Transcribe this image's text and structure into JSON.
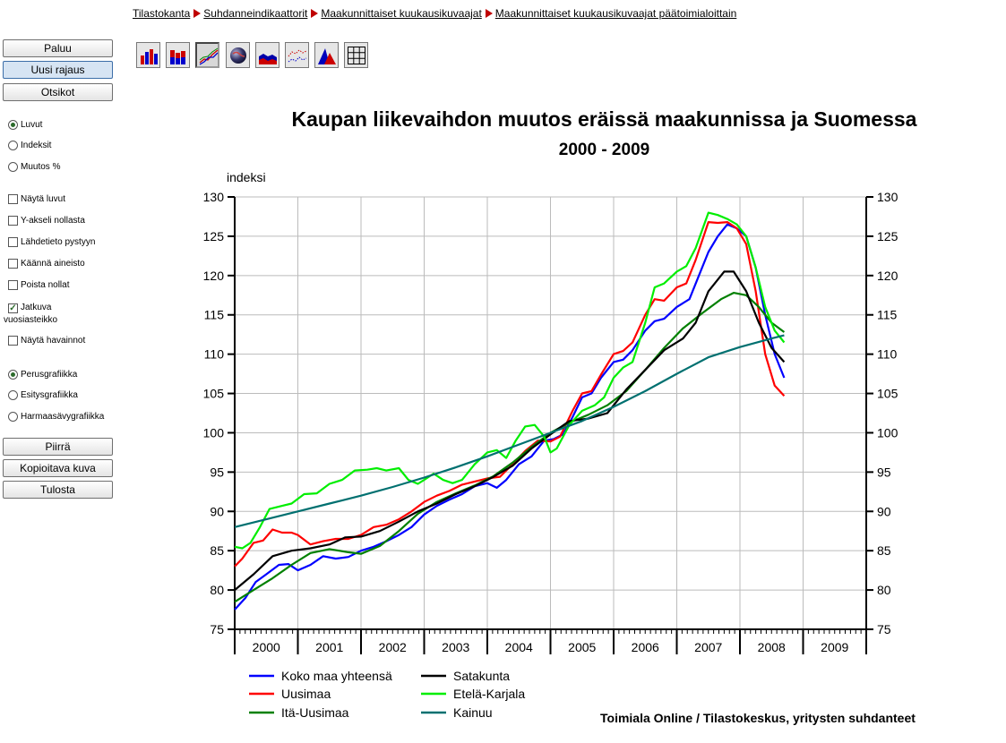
{
  "breadcrumb": [
    "Tilastokanta",
    "Suhdanneindikaattorit",
    "Maakunnittaiset kuukausikuvaajat",
    "Maakunnittaiset kuukausikuvaajat päätoimialoittain"
  ],
  "sidebar": {
    "buttons_top": [
      "Paluu",
      "Uusi rajaus",
      "Otsikot"
    ],
    "value_type": [
      {
        "label": "Luvut",
        "selected": true
      },
      {
        "label": "Indeksit",
        "selected": false
      },
      {
        "label": "Muutos %",
        "selected": false
      }
    ],
    "options": [
      {
        "label": "Näytä luvut",
        "checked": false
      },
      {
        "label": "Y-akseli nollasta",
        "checked": false
      },
      {
        "label": "Lähdetieto pystyyn",
        "checked": false
      },
      {
        "label": "Käännä aineisto",
        "checked": false
      },
      {
        "label": "Poista nollat",
        "checked": false
      },
      {
        "label": "Jatkuva vuosiasteikko",
        "checked": true
      },
      {
        "label": "Näytä havainnot",
        "checked": false
      }
    ],
    "graphics_type": [
      {
        "label": "Perusgrafiikka",
        "selected": true
      },
      {
        "label": "Esitysgrafiikka",
        "selected": false
      },
      {
        "label": "Harmaasävygrafiikka",
        "selected": false
      }
    ],
    "buttons_bottom": [
      "Piirrä",
      "Kopioitava kuva",
      "Tulosta"
    ]
  },
  "toolbar": {
    "icons": [
      "bar-chart-icon",
      "stacked-bar-icon",
      "line-chart-icon",
      "globe-map-icon",
      "area-chart-icon",
      "scatter-line-icon",
      "pie-area-icon",
      "table-grid-icon"
    ],
    "active": 2
  },
  "colors": {
    "accent": "#c00000",
    "grid": "#bbbbbb"
  },
  "source_note": "Toimiala Online / Tilastokeskus, yritysten suhdanteet",
  "chart_data": {
    "type": "line",
    "title": "Kaupan liikevaihdon muutos eräissä maakunnissa ja Suomessa",
    "subtitle": "2000 - 2009",
    "ylabel": "indeksi",
    "ylim": [
      75,
      130
    ],
    "yticks": [
      75,
      80,
      85,
      90,
      95,
      100,
      105,
      110,
      115,
      120,
      125,
      130
    ],
    "xlim": [
      2000,
      2010
    ],
    "xtick_labels": [
      "2000",
      "2001",
      "2002",
      "2003",
      "2004",
      "2005",
      "2006",
      "2007",
      "2008",
      "2009"
    ],
    "grid": true,
    "legend_position": "bottom",
    "series": [
      {
        "name": "Koko maa yhteensä",
        "color": "#0000ff",
        "points": [
          [
            2000.0,
            77.5
          ],
          [
            2000.17,
            79
          ],
          [
            2000.33,
            81
          ],
          [
            2000.5,
            82
          ],
          [
            2000.7,
            83.2
          ],
          [
            2000.85,
            83.3
          ],
          [
            2001.0,
            82.5
          ],
          [
            2001.2,
            83.2
          ],
          [
            2001.4,
            84.3
          ],
          [
            2001.6,
            84
          ],
          [
            2001.8,
            84.2
          ],
          [
            2002.0,
            85
          ],
          [
            2002.2,
            85.5
          ],
          [
            2002.4,
            86.2
          ],
          [
            2002.6,
            87
          ],
          [
            2002.8,
            88
          ],
          [
            2003.0,
            89.6
          ],
          [
            2003.2,
            90.7
          ],
          [
            2003.4,
            91.5
          ],
          [
            2003.6,
            92.2
          ],
          [
            2003.8,
            93.2
          ],
          [
            2004.0,
            93.6
          ],
          [
            2004.15,
            93
          ],
          [
            2004.3,
            94
          ],
          [
            2004.5,
            96
          ],
          [
            2004.7,
            97
          ],
          [
            2004.9,
            99
          ],
          [
            2005.05,
            99.2
          ],
          [
            2005.2,
            99.8
          ],
          [
            2005.35,
            102
          ],
          [
            2005.5,
            104.5
          ],
          [
            2005.65,
            105
          ],
          [
            2005.8,
            107
          ],
          [
            2006.0,
            109
          ],
          [
            2006.15,
            109.3
          ],
          [
            2006.3,
            110.5
          ],
          [
            2006.5,
            113
          ],
          [
            2006.65,
            114.2
          ],
          [
            2006.8,
            114.5
          ],
          [
            2007.0,
            116
          ],
          [
            2007.2,
            117
          ],
          [
            2007.35,
            120
          ],
          [
            2007.5,
            123
          ],
          [
            2007.65,
            125
          ],
          [
            2007.8,
            126.5
          ],
          [
            2007.95,
            126
          ],
          [
            2008.1,
            125
          ],
          [
            2008.25,
            121
          ],
          [
            2008.4,
            115
          ],
          [
            2008.55,
            110
          ],
          [
            2008.7,
            107
          ]
        ]
      },
      {
        "name": "Uusimaa",
        "color": "#ff0000",
        "points": [
          [
            2000.0,
            83
          ],
          [
            2000.12,
            84
          ],
          [
            2000.3,
            86
          ],
          [
            2000.45,
            86.3
          ],
          [
            2000.6,
            87.7
          ],
          [
            2000.75,
            87.3
          ],
          [
            2000.9,
            87.3
          ],
          [
            2001.0,
            87
          ],
          [
            2001.2,
            85.8
          ],
          [
            2001.4,
            86.2
          ],
          [
            2001.6,
            86.5
          ],
          [
            2001.8,
            86.5
          ],
          [
            2002.0,
            87
          ],
          [
            2002.2,
            88
          ],
          [
            2002.4,
            88.3
          ],
          [
            2002.6,
            89
          ],
          [
            2002.8,
            90
          ],
          [
            2003.0,
            91.2
          ],
          [
            2003.2,
            92
          ],
          [
            2003.4,
            92.6
          ],
          [
            2003.6,
            93.4
          ],
          [
            2003.8,
            93.8
          ],
          [
            2004.0,
            94.2
          ],
          [
            2004.2,
            94.4
          ],
          [
            2004.4,
            96
          ],
          [
            2004.6,
            97.7
          ],
          [
            2004.8,
            99
          ],
          [
            2005.0,
            98.9
          ],
          [
            2005.15,
            99.5
          ],
          [
            2005.35,
            102.8
          ],
          [
            2005.5,
            105
          ],
          [
            2005.65,
            105.3
          ],
          [
            2005.8,
            107.4
          ],
          [
            2006.0,
            110
          ],
          [
            2006.15,
            110.4
          ],
          [
            2006.3,
            111.5
          ],
          [
            2006.5,
            115
          ],
          [
            2006.65,
            117
          ],
          [
            2006.8,
            116.8
          ],
          [
            2007.0,
            118.5
          ],
          [
            2007.15,
            119
          ],
          [
            2007.3,
            122
          ],
          [
            2007.5,
            126.8
          ],
          [
            2007.65,
            126.7
          ],
          [
            2007.8,
            126.8
          ],
          [
            2007.95,
            126
          ],
          [
            2008.1,
            124
          ],
          [
            2008.25,
            118
          ],
          [
            2008.4,
            110
          ],
          [
            2008.55,
            106
          ],
          [
            2008.7,
            104.7
          ]
        ]
      },
      {
        "name": "Itä-Uusimaa",
        "color": "#008000",
        "points": [
          [
            2000.0,
            78.5
          ],
          [
            2000.3,
            80
          ],
          [
            2000.6,
            81.5
          ],
          [
            2000.9,
            83.2
          ],
          [
            2001.2,
            84.7
          ],
          [
            2001.5,
            85.2
          ],
          [
            2001.8,
            84.8
          ],
          [
            2002.0,
            84.6
          ],
          [
            2002.3,
            85.6
          ],
          [
            2002.6,
            87.5
          ],
          [
            2002.9,
            89.7
          ],
          [
            2003.2,
            91.2
          ],
          [
            2003.5,
            92.3
          ],
          [
            2003.8,
            93.3
          ],
          [
            2004.1,
            94.5
          ],
          [
            2004.4,
            96.2
          ],
          [
            2004.7,
            98.2
          ],
          [
            2005.0,
            100
          ],
          [
            2005.3,
            101.3
          ],
          [
            2005.6,
            102.3
          ],
          [
            2005.9,
            103.5
          ],
          [
            2006.2,
            105.3
          ],
          [
            2006.5,
            108
          ],
          [
            2006.8,
            110.8
          ],
          [
            2007.1,
            113.3
          ],
          [
            2007.4,
            115.2
          ],
          [
            2007.7,
            117
          ],
          [
            2007.9,
            117.8
          ],
          [
            2008.1,
            117.5
          ],
          [
            2008.3,
            116
          ],
          [
            2008.5,
            114
          ],
          [
            2008.7,
            112.8
          ]
        ]
      },
      {
        "name": "Satakunta",
        "color": "#000000",
        "points": [
          [
            2000.0,
            80
          ],
          [
            2000.3,
            82
          ],
          [
            2000.6,
            84.3
          ],
          [
            2000.9,
            85
          ],
          [
            2001.2,
            85.3
          ],
          [
            2001.5,
            85.8
          ],
          [
            2001.75,
            86.7
          ],
          [
            2002.0,
            86.8
          ],
          [
            2002.3,
            87.5
          ],
          [
            2002.6,
            88.7
          ],
          [
            2002.9,
            90
          ],
          [
            2003.2,
            91
          ],
          [
            2003.5,
            92.2
          ],
          [
            2003.8,
            93.2
          ],
          [
            2004.1,
            94.4
          ],
          [
            2004.4,
            95.8
          ],
          [
            2004.7,
            98
          ],
          [
            2005.0,
            99.8
          ],
          [
            2005.3,
            101.5
          ],
          [
            2005.6,
            101.8
          ],
          [
            2005.9,
            102.5
          ],
          [
            2006.2,
            105.5
          ],
          [
            2006.5,
            108
          ],
          [
            2006.8,
            110.5
          ],
          [
            2007.1,
            112
          ],
          [
            2007.3,
            114
          ],
          [
            2007.5,
            118
          ],
          [
            2007.75,
            120.5
          ],
          [
            2007.9,
            120.5
          ],
          [
            2008.1,
            118
          ],
          [
            2008.3,
            114
          ],
          [
            2008.5,
            110.8
          ],
          [
            2008.7,
            109
          ]
        ]
      },
      {
        "name": "Etelä-Karjala",
        "color": "#00ee00",
        "points": [
          [
            2000.0,
            85.5
          ],
          [
            2000.12,
            85.3
          ],
          [
            2000.25,
            86
          ],
          [
            2000.4,
            88
          ],
          [
            2000.55,
            90.3
          ],
          [
            2000.75,
            90.7
          ],
          [
            2000.9,
            91
          ],
          [
            2001.1,
            92.2
          ],
          [
            2001.3,
            92.3
          ],
          [
            2001.5,
            93.5
          ],
          [
            2001.7,
            94
          ],
          [
            2001.9,
            95.2
          ],
          [
            2002.1,
            95.3
          ],
          [
            2002.25,
            95.5
          ],
          [
            2002.4,
            95.2
          ],
          [
            2002.6,
            95.5
          ],
          [
            2002.75,
            94
          ],
          [
            2002.9,
            93.5
          ],
          [
            2003.0,
            94
          ],
          [
            2003.15,
            94.8
          ],
          [
            2003.3,
            94
          ],
          [
            2003.45,
            93.6
          ],
          [
            2003.6,
            94
          ],
          [
            2003.8,
            96
          ],
          [
            2004.0,
            97.5
          ],
          [
            2004.15,
            97.8
          ],
          [
            2004.3,
            96.8
          ],
          [
            2004.45,
            99
          ],
          [
            2004.6,
            100.8
          ],
          [
            2004.75,
            101
          ],
          [
            2004.9,
            99.5
          ],
          [
            2005.0,
            97.5
          ],
          [
            2005.1,
            98
          ],
          [
            2005.3,
            101
          ],
          [
            2005.5,
            102.8
          ],
          [
            2005.7,
            103.5
          ],
          [
            2005.85,
            104.5
          ],
          [
            2006.0,
            107
          ],
          [
            2006.15,
            108.3
          ],
          [
            2006.3,
            109
          ],
          [
            2006.5,
            114
          ],
          [
            2006.65,
            118.5
          ],
          [
            2006.8,
            119
          ],
          [
            2007.0,
            120.5
          ],
          [
            2007.15,
            121.2
          ],
          [
            2007.3,
            123.5
          ],
          [
            2007.5,
            128
          ],
          [
            2007.65,
            127.7
          ],
          [
            2007.8,
            127.2
          ],
          [
            2007.95,
            126.5
          ],
          [
            2008.1,
            125
          ],
          [
            2008.25,
            121
          ],
          [
            2008.4,
            116
          ],
          [
            2008.55,
            113
          ],
          [
            2008.7,
            111.5
          ]
        ]
      },
      {
        "name": "Kainuu",
        "color": "#007070",
        "points": [
          [
            2000.0,
            88
          ],
          [
            2000.5,
            89
          ],
          [
            2001.0,
            90
          ],
          [
            2001.5,
            91
          ],
          [
            2002.0,
            92
          ],
          [
            2002.5,
            93.1
          ],
          [
            2003.0,
            94.3
          ],
          [
            2003.5,
            95.6
          ],
          [
            2004.0,
            97
          ],
          [
            2004.5,
            98.5
          ],
          [
            2005.0,
            100
          ],
          [
            2005.5,
            101.5
          ],
          [
            2006.0,
            103.3
          ],
          [
            2006.5,
            105.3
          ],
          [
            2007.0,
            107.5
          ],
          [
            2007.5,
            109.6
          ],
          [
            2008.0,
            110.9
          ],
          [
            2008.5,
            112
          ],
          [
            2008.7,
            112.4
          ]
        ]
      }
    ]
  }
}
